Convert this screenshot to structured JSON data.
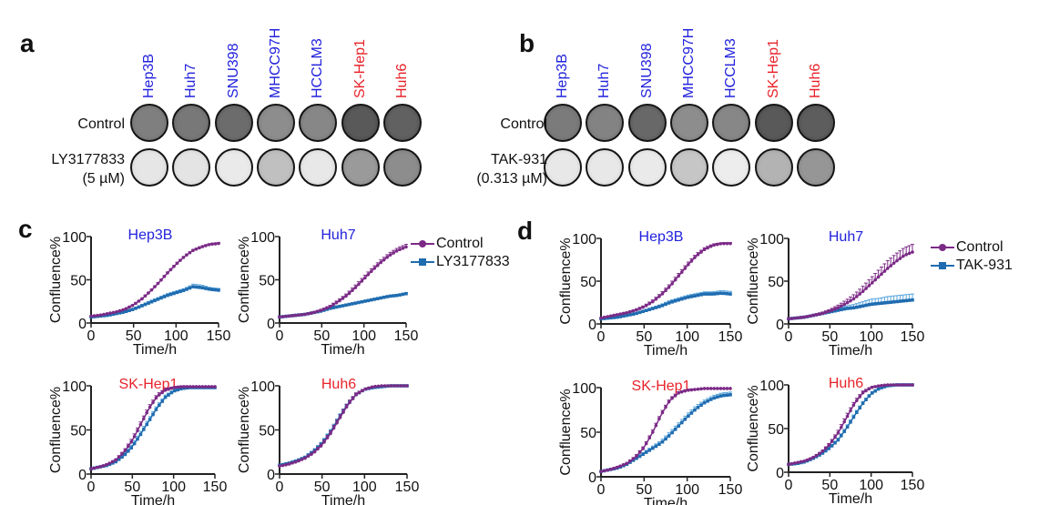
{
  "colors": {
    "control": "#7b2a86",
    "treated": "#1f6cb0",
    "treated_err": "#5aa7dd",
    "sensitive_label": "#2222dd",
    "resistant_label": "#e8232a"
  },
  "panel_a": {
    "letter": "a",
    "cell_lines": [
      {
        "name": "Hep3B",
        "group": "sensitive"
      },
      {
        "name": "Huh7",
        "group": "sensitive"
      },
      {
        "name": "SNU398",
        "group": "sensitive"
      },
      {
        "name": "MHCC97H",
        "group": "sensitive"
      },
      {
        "name": "HCCLM3",
        "group": "sensitive"
      },
      {
        "name": "SK-Hep1",
        "group": "resistant"
      },
      {
        "name": "Huh6",
        "group": "resistant"
      }
    ],
    "row_labels": [
      "Control",
      "LY3177833",
      "(5 µM)"
    ],
    "well_density": {
      "control": [
        0.62,
        0.66,
        0.72,
        0.55,
        0.58,
        0.82,
        0.78
      ],
      "treated": [
        0.08,
        0.09,
        0.06,
        0.28,
        0.07,
        0.48,
        0.55
      ]
    }
  },
  "panel_b": {
    "letter": "b",
    "cell_lines": [
      {
        "name": "Hep3B",
        "group": "sensitive"
      },
      {
        "name": "Huh7",
        "group": "sensitive"
      },
      {
        "name": "SNU398",
        "group": "sensitive"
      },
      {
        "name": "MHCC97H",
        "group": "sensitive"
      },
      {
        "name": "HCCLM3",
        "group": "sensitive"
      },
      {
        "name": "SK-Hep1",
        "group": "resistant"
      },
      {
        "name": "Huh6",
        "group": "resistant"
      }
    ],
    "row_labels": [
      "Control",
      "TAK-931",
      "(0.313 µM)"
    ],
    "well_density": {
      "control": [
        0.64,
        0.6,
        0.74,
        0.55,
        0.58,
        0.82,
        0.8
      ],
      "treated": [
        0.07,
        0.07,
        0.06,
        0.25,
        0.04,
        0.35,
        0.5
      ]
    }
  },
  "panel_c": {
    "letter": "c",
    "legend": [
      "Control",
      "LY3177833"
    ]
  },
  "panel_d": {
    "letter": "d",
    "legend": [
      "Control",
      "TAK-931"
    ]
  },
  "chart_data": [
    {
      "type": "line",
      "panel": "c",
      "title": "Hep3B",
      "title_group": "sensitive",
      "xlabel": "Time/h",
      "ylabel": "Confluence%",
      "xlim": [
        0,
        150
      ],
      "ylim": [
        0,
        100
      ],
      "xticks": [
        0,
        50,
        100,
        150
      ],
      "yticks": [
        0,
        50,
        100
      ],
      "x": [
        0,
        10,
        20,
        30,
        40,
        50,
        60,
        70,
        80,
        90,
        100,
        110,
        120,
        130,
        140,
        150
      ],
      "series": [
        {
          "name": "Control",
          "values": [
            8,
            9,
            11,
            13,
            16,
            21,
            28,
            37,
            47,
            58,
            68,
            77,
            84,
            88,
            91,
            92
          ],
          "err": [
            0.5,
            0.5,
            0.5,
            0.5,
            0.6,
            0.7,
            0.8,
            0.9,
            1,
            1,
            1,
            1,
            1,
            1,
            1,
            1
          ]
        },
        {
          "name": "LY3177833",
          "values": [
            7,
            8,
            9,
            11,
            13,
            16,
            20,
            24,
            28,
            32,
            35,
            38,
            42,
            41,
            39,
            38
          ],
          "err": [
            0.5,
            0.5,
            0.6,
            0.7,
            0.8,
            1.2,
            1.5,
            2,
            2,
            2,
            2,
            2,
            3,
            3,
            2,
            2
          ]
        }
      ]
    },
    {
      "type": "line",
      "panel": "c",
      "title": "Huh7",
      "title_group": "sensitive",
      "xlabel": "Time/h",
      "ylabel": "Confluence%",
      "xlim": [
        0,
        150
      ],
      "ylim": [
        0,
        100
      ],
      "xticks": [
        0,
        50,
        100,
        150
      ],
      "yticks": [
        0,
        50,
        100
      ],
      "x": [
        0,
        10,
        20,
        30,
        40,
        50,
        60,
        70,
        80,
        90,
        100,
        110,
        120,
        130,
        140,
        150
      ],
      "series": [
        {
          "name": "Control",
          "values": [
            7,
            8,
            9,
            10,
            12,
            15,
            19,
            25,
            32,
            41,
            51,
            61,
            70,
            78,
            84,
            88
          ],
          "err": [
            0.5,
            0.5,
            0.5,
            0.6,
            0.8,
            1,
            1.5,
            2,
            2.5,
            3,
            3,
            3,
            3,
            3,
            3,
            3
          ]
        },
        {
          "name": "LY3177833",
          "values": [
            7,
            8,
            9,
            10,
            12,
            14,
            17,
            19,
            21,
            23,
            25,
            27,
            29,
            31,
            32,
            34
          ],
          "err": [
            0.4,
            0.4,
            0.4,
            0.5,
            0.5,
            0.5,
            0.6,
            0.6,
            0.6,
            0.6,
            0.7,
            0.7,
            0.7,
            0.8,
            0.8,
            0.8
          ]
        }
      ]
    },
    {
      "type": "line",
      "panel": "c",
      "title": "SK-Hep1",
      "title_group": "resistant",
      "xlabel": "Time/h",
      "ylabel": "Confluence%",
      "xlim": [
        0,
        150
      ],
      "ylim": [
        0,
        100
      ],
      "xticks": [
        0,
        50,
        100,
        150
      ],
      "yticks": [
        0,
        50,
        100
      ],
      "x": [
        0,
        10,
        20,
        30,
        40,
        50,
        60,
        70,
        80,
        90,
        100,
        110,
        120,
        130,
        140,
        150
      ],
      "series": [
        {
          "name": "Control",
          "values": [
            6,
            8,
            11,
            16,
            25,
            38,
            56,
            74,
            88,
            95,
            98,
            99,
            99,
            99,
            99,
            99
          ],
          "err": [
            0.5,
            0.6,
            0.8,
            1.2,
            2,
            3,
            3,
            3,
            2.5,
            2,
            1,
            0.8,
            0.5,
            0.5,
            0.5,
            0.5
          ]
        },
        {
          "name": "LY3177833",
          "values": [
            6,
            8,
            10,
            14,
            21,
            31,
            45,
            60,
            75,
            87,
            94,
            97,
            98,
            98,
            98,
            98
          ],
          "err": [
            0.5,
            0.6,
            0.8,
            1.2,
            2,
            3,
            3.5,
            3.5,
            3,
            2.5,
            1.5,
            1,
            0.8,
            0.5,
            0.5,
            0.5
          ]
        }
      ]
    },
    {
      "type": "line",
      "panel": "c",
      "title": "Huh6",
      "title_group": "resistant",
      "xlabel": "Time/h",
      "ylabel": "Confluence%",
      "xlim": [
        0,
        150
      ],
      "ylim": [
        0,
        100
      ],
      "xticks": [
        0,
        50,
        100,
        150
      ],
      "yticks": [
        0,
        50,
        100
      ],
      "x": [
        0,
        10,
        20,
        30,
        40,
        50,
        60,
        70,
        80,
        90,
        100,
        110,
        120,
        130,
        140,
        150
      ],
      "series": [
        {
          "name": "Control",
          "values": [
            9,
            11,
            14,
            18,
            24,
            33,
            46,
            62,
            78,
            90,
            96,
            99,
            100,
            100,
            100,
            100
          ],
          "err": [
            0.5,
            0.6,
            0.8,
            1,
            1.5,
            2,
            3,
            3.5,
            3,
            2,
            1,
            0.5,
            0.3,
            0.3,
            0.3,
            0.3
          ]
        },
        {
          "name": "LY3177833",
          "values": [
            10,
            12,
            15,
            19,
            26,
            35,
            48,
            64,
            79,
            90,
            96,
            98,
            99,
            100,
            100,
            100
          ],
          "err": [
            0.5,
            0.6,
            0.8,
            1,
            1.5,
            2,
            2.5,
            2.5,
            2,
            1.5,
            1,
            0.5,
            0.3,
            0.3,
            0.3,
            0.3
          ]
        }
      ]
    },
    {
      "type": "line",
      "panel": "d",
      "title": "Hep3B",
      "title_group": "sensitive",
      "xlabel": "Time/h",
      "ylabel": "Confluence%",
      "xlim": [
        0,
        150
      ],
      "ylim": [
        0,
        100
      ],
      "xticks": [
        0,
        50,
        100,
        150
      ],
      "yticks": [
        0,
        50,
        100
      ],
      "x": [
        0,
        10,
        20,
        30,
        40,
        50,
        60,
        70,
        80,
        90,
        100,
        110,
        120,
        130,
        140,
        150
      ],
      "series": [
        {
          "name": "Control",
          "values": [
            7,
            9,
            11,
            13,
            16,
            20,
            26,
            34,
            44,
            56,
            68,
            79,
            87,
            92,
            94,
            94
          ],
          "err": [
            0.5,
            0.6,
            0.8,
            1,
            1.2,
            1.5,
            2,
            2.5,
            3,
            3,
            3,
            2.5,
            2,
            1.5,
            1,
            1
          ]
        },
        {
          "name": "TAK-931",
          "values": [
            6,
            7,
            8,
            10,
            12,
            15,
            18,
            21,
            25,
            28,
            31,
            33,
            35,
            35,
            36,
            35
          ],
          "err": [
            0.5,
            0.5,
            0.6,
            0.8,
            1,
            1.2,
            1.5,
            2,
            2.5,
            2.5,
            2.5,
            2.5,
            2.5,
            2.5,
            3,
            3
          ]
        }
      ]
    },
    {
      "type": "line",
      "panel": "d",
      "title": "Huh7",
      "title_group": "sensitive",
      "xlabel": "Time/h",
      "ylabel": "Confluence%",
      "xlim": [
        0,
        150
      ],
      "ylim": [
        0,
        100
      ],
      "xticks": [
        0,
        50,
        100,
        150
      ],
      "yticks": [
        0,
        50,
        100
      ],
      "x": [
        0,
        10,
        20,
        30,
        40,
        50,
        60,
        70,
        80,
        90,
        100,
        110,
        120,
        130,
        140,
        150
      ],
      "series": [
        {
          "name": "Control",
          "values": [
            6,
            7,
            8,
            10,
            12,
            15,
            19,
            24,
            30,
            38,
            47,
            56,
            65,
            73,
            80,
            84
          ],
          "err": [
            0.5,
            0.5,
            0.8,
            1,
            1.5,
            2,
            3,
            4,
            5,
            6,
            7,
            8,
            9,
            9,
            9,
            9
          ]
        },
        {
          "name": "TAK-931",
          "values": [
            6,
            7,
            8,
            10,
            12,
            14,
            16,
            18,
            19,
            21,
            23,
            24,
            25,
            26,
            27,
            28
          ],
          "err": [
            0.4,
            0.5,
            0.6,
            0.8,
            1,
            1.5,
            2,
            3,
            4,
            5,
            6,
            6,
            7,
            7,
            7,
            7
          ]
        }
      ]
    },
    {
      "type": "line",
      "panel": "d",
      "title": "SK-Hep1",
      "title_group": "resistant",
      "xlabel": "Time/h",
      "ylabel": "Confluence%",
      "xlim": [
        0,
        150
      ],
      "ylim": [
        0,
        100
      ],
      "xticks": [
        0,
        50,
        100,
        150
      ],
      "yticks": [
        0,
        50,
        100
      ],
      "x": [
        0,
        10,
        20,
        30,
        40,
        50,
        60,
        70,
        80,
        90,
        100,
        110,
        120,
        130,
        140,
        150
      ],
      "series": [
        {
          "name": "Control",
          "values": [
            6,
            8,
            11,
            15,
            22,
            33,
            50,
            70,
            86,
            94,
            97,
            98,
            99,
            99,
            99,
            99
          ],
          "err": [
            0.5,
            0.6,
            0.8,
            1,
            1.5,
            2,
            2.5,
            2.5,
            2,
            1.5,
            1,
            0.6,
            0.5,
            0.5,
            0.5,
            0.5
          ]
        },
        {
          "name": "TAK-931",
          "values": [
            6,
            8,
            10,
            14,
            20,
            26,
            32,
            38,
            47,
            57,
            67,
            76,
            83,
            88,
            91,
            92
          ],
          "err": [
            0.5,
            0.6,
            0.8,
            1,
            1.5,
            2,
            2.5,
            3,
            3.5,
            3.5,
            3.5,
            3.5,
            3,
            3,
            3,
            3
          ]
        }
      ]
    },
    {
      "type": "line",
      "panel": "d",
      "title": "Huh6",
      "title_group": "resistant",
      "xlabel": "Time/h",
      "ylabel": "Confluence%",
      "xlim": [
        0,
        150
      ],
      "ylim": [
        0,
        100
      ],
      "xticks": [
        0,
        50,
        100,
        150
      ],
      "yticks": [
        0,
        50,
        100
      ],
      "x": [
        0,
        10,
        20,
        30,
        40,
        50,
        60,
        70,
        80,
        90,
        100,
        110,
        120,
        130,
        140,
        150
      ],
      "series": [
        {
          "name": "Control",
          "values": [
            9,
            11,
            13,
            17,
            23,
            32,
            45,
            62,
            79,
            91,
            97,
            99,
            100,
            100,
            100,
            100
          ],
          "err": [
            0.5,
            0.5,
            0.6,
            0.8,
            1.2,
            2,
            3,
            3.5,
            3,
            2,
            1,
            0.5,
            0.3,
            0.3,
            0.3,
            0.3
          ]
        },
        {
          "name": "TAK-931",
          "values": [
            9,
            10,
            12,
            16,
            21,
            28,
            37,
            50,
            65,
            79,
            90,
            96,
            99,
            100,
            100,
            100
          ],
          "err": [
            0.5,
            0.5,
            0.6,
            0.8,
            1,
            1.5,
            2,
            2.5,
            2.5,
            2,
            1.5,
            1,
            0.5,
            0.3,
            0.3,
            0.3
          ]
        }
      ]
    }
  ]
}
